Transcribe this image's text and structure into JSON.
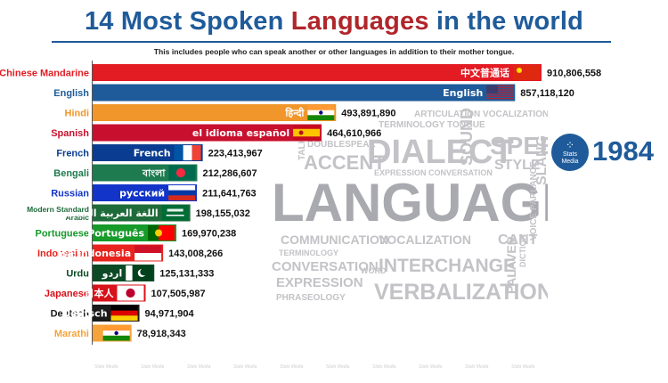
{
  "header": {
    "title_pre": "14 Most Spoken ",
    "title_hl": "Languages",
    "title_post": " in the world",
    "subtitle": "This includes people who can speak another or other languages in addition to their mother tongue."
  },
  "period": {
    "year": "1984"
  },
  "logo": {
    "line1": "Stats",
    "line2": "Media",
    "watermark": "Stats Media"
  },
  "wordcloud": {
    "words": [
      "LANGUAGE",
      "DIALECT",
      "SPEECH",
      "ACCENT",
      "INTERCHANGE",
      "VERBALIZATION",
      "COMMUNICATION",
      "VOCALIZATION",
      "CANT",
      "CONVERSATION",
      "EXPRESSION",
      "TERMINOLOGY",
      "PHRASEOLOGY",
      "STYLE",
      "SOUND",
      "SLANG",
      "PALAVER",
      "DOUBLESPEAK",
      "EXPRESSION CONVERSATION",
      "TERMINOLOGY TONGUE",
      "ARTICULATION VOCALIZATION",
      "TALK",
      "WORD",
      "VOICE PARLANCE",
      "DICTION"
    ]
  },
  "chart_data": {
    "type": "bar",
    "orientation": "horizontal",
    "title": "14 Most Spoken Languages in the world",
    "subtitle": "This includes people who can speak another or other languages in addition to their mother tongue.",
    "period": "1984",
    "xlim": [
      0,
      1000000000
    ],
    "grid": false,
    "categories": [
      "Chinese Mandarine",
      "English",
      "Hindi",
      "Spanish",
      "French",
      "Bengali",
      "Russian",
      "Modern Standard Arabic",
      "Portuguese",
      "Indonesian",
      "Urdu",
      "Japanese",
      "Deutsch",
      "Marathi"
    ],
    "values": [
      910806558,
      857118120,
      493891890,
      464610966,
      223413967,
      212286607,
      211641763,
      198155032,
      169970238,
      143008266,
      125131333,
      107505987,
      94971904,
      78918343
    ],
    "value_labels": [
      "910,806,558",
      "857,118,120",
      "493,891,890",
      "464,610,966",
      "223,413,967",
      "212,286,607",
      "211,641,763",
      "198,155,032",
      "169,970,238",
      "143,008,266",
      "125,131,333",
      "107,505,987",
      "94,971,904",
      "78,918,343"
    ],
    "native_names": [
      "中文普通话",
      "English",
      "हिन्दी",
      "el idioma español",
      "French",
      "বাংলা",
      "русский",
      "اللغة العربية الحديثة",
      "Português",
      "isa Indonesia",
      "اردو",
      "日本人",
      "Deutsch",
      ""
    ],
    "colors": [
      "#e31b23",
      "#1f5b9a",
      "#f0962a",
      "#c8102e",
      "#0a3d91",
      "#1e7b4f",
      "#1234c8",
      "#1e6b3a",
      "#169a2a",
      "#e8231e",
      "#0c4a26",
      "#d9111a",
      "#1a1a1a",
      "#f5a33a"
    ],
    "flags": [
      "china",
      "usa",
      "india",
      "spain",
      "france",
      "bangladesh",
      "russia",
      "saudi",
      "portugal",
      "indonesia",
      "pakistan",
      "japan",
      "germany",
      "india"
    ]
  }
}
